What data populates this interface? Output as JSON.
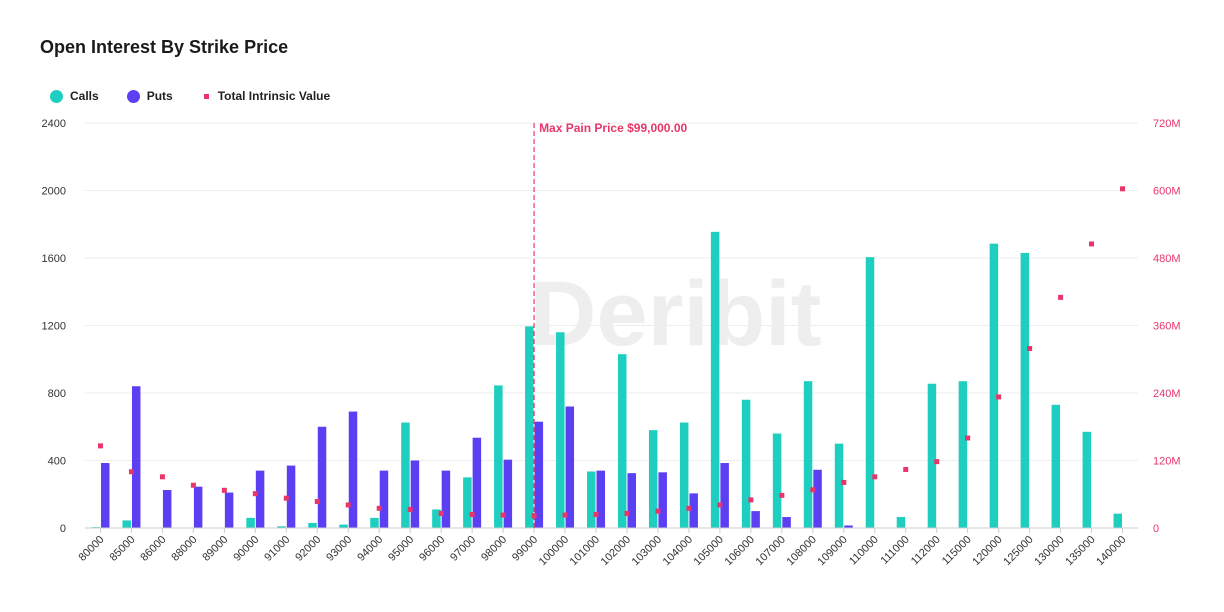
{
  "colors": {
    "calls": "#1ecfbf",
    "puts": "#5b3ff2",
    "intrinsic": "#e8366a",
    "grid": "#eeeeee",
    "watermark": "#eeeeee"
  },
  "watermark": "Deribit",
  "chart_data": {
    "type": "bar",
    "title": "Open Interest By Strike Price",
    "legend_position": "top-left",
    "grid": true,
    "categories": [
      "80000",
      "85000",
      "86000",
      "88000",
      "89000",
      "90000",
      "91000",
      "92000",
      "93000",
      "94000",
      "95000",
      "96000",
      "97000",
      "98000",
      "99000",
      "100000",
      "101000",
      "102000",
      "103000",
      "104000",
      "105000",
      "106000",
      "107000",
      "108000",
      "109000",
      "110000",
      "111000",
      "112000",
      "115000",
      "120000",
      "125000",
      "130000",
      "135000",
      "140000"
    ],
    "series": [
      {
        "name": "Calls",
        "type": "bar",
        "axis": "left",
        "values": [
          5,
          45,
          0,
          0,
          0,
          60,
          10,
          30,
          20,
          60,
          625,
          110,
          300,
          845,
          1195,
          1160,
          335,
          1030,
          580,
          625,
          1755,
          760,
          560,
          870,
          500,
          1605,
          65,
          855,
          870,
          1685,
          1630,
          730,
          570,
          85
        ]
      },
      {
        "name": "Puts",
        "type": "bar",
        "axis": "left",
        "values": [
          385,
          840,
          225,
          245,
          210,
          340,
          370,
          600,
          690,
          340,
          400,
          340,
          535,
          405,
          630,
          720,
          340,
          325,
          330,
          205,
          385,
          100,
          65,
          345,
          15,
          0,
          0,
          0,
          0,
          0,
          0,
          0,
          0,
          0
        ]
      },
      {
        "name": "Total Intrinsic Value",
        "type": "scatter",
        "axis": "right",
        "values": [
          146,
          100,
          91,
          76,
          67,
          61,
          53,
          47,
          41,
          35,
          33,
          26,
          24,
          23,
          22,
          23,
          24,
          26,
          30,
          35,
          41,
          50,
          58,
          68,
          81,
          91,
          104,
          118,
          160,
          233,
          319,
          410,
          505,
          603
        ]
      }
    ],
    "y_left": {
      "ylim": [
        0,
        2400
      ],
      "ticks": [
        0,
        400,
        800,
        1200,
        1600,
        2000,
        2400
      ]
    },
    "y_right": {
      "ylim": [
        0,
        720
      ],
      "unit": "M",
      "ticks": [
        "0",
        "120M",
        "240M",
        "360M",
        "480M",
        "600M",
        "720M"
      ]
    },
    "annotation": {
      "category": "99000",
      "label": "Max Pain Price $99,000.00"
    }
  }
}
